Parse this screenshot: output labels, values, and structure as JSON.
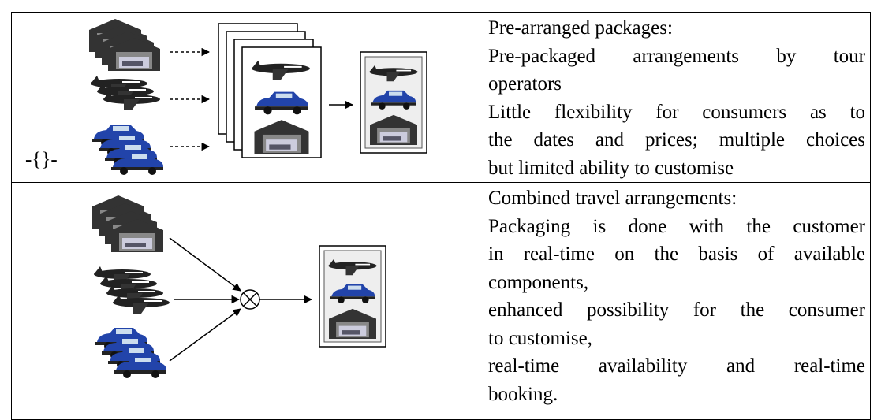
{
  "table": {
    "rows": [
      {
        "image_label": "-{}-",
        "text_lines": [
          "Pre-arranged packages:",
          "Pre-packaged arrangements by tour",
          "operators",
          "Little flexibility for consumers as to",
          "the dates and prices; multiple choices",
          "but limited ability to customise"
        ]
      },
      {
        "text_lines": [
          "Combined travel arrangements:",
          "Packaging is done with the customer",
          "in real-time on the basis of available",
          "components,",
          "enhanced possibility for the consumer",
          "to customise,",
          "real-time availability and real-time",
          "booking."
        ]
      }
    ]
  }
}
